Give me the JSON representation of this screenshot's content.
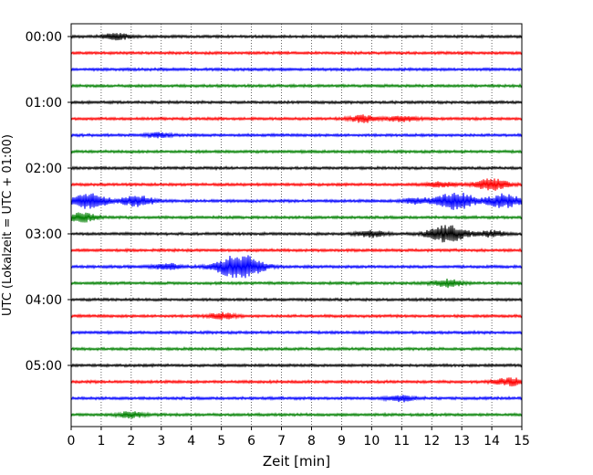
{
  "chart_data": {
    "type": "line",
    "title": "",
    "xlabel": "Zeit  [min]",
    "ylabel": "UTC (Lokalzeit = UTC + 01:00)",
    "xlim": [
      0,
      15
    ],
    "x_ticks": [
      0,
      1,
      2,
      3,
      4,
      5,
      6,
      7,
      8,
      9,
      10,
      11,
      12,
      13,
      14,
      15
    ],
    "y_ticks": [
      "00:00",
      "01:00",
      "02:00",
      "03:00",
      "04:00",
      "05:00"
    ],
    "grid": "vertical dotted",
    "trace_count": 24,
    "trace_interval_min": 15,
    "colors": [
      "#000000",
      "#ff0000",
      "#0000ff",
      "#008000"
    ],
    "events": [
      {
        "trace": 0,
        "x": 1.5,
        "amp": 3
      },
      {
        "trace": 6,
        "x": 2.9,
        "amp": 2
      },
      {
        "trace": 5,
        "x": 9.7,
        "amp": 3.5
      },
      {
        "trace": 5,
        "x": 11.0,
        "amp": 3
      },
      {
        "trace": 9,
        "x": 14.0,
        "amp": 6
      },
      {
        "trace": 9,
        "x": 12.3,
        "amp": 2.5
      },
      {
        "trace": 10,
        "x": 0.6,
        "amp": 8
      },
      {
        "trace": 10,
        "x": 2.2,
        "amp": 6
      },
      {
        "trace": 10,
        "x": 11.5,
        "amp": 3
      },
      {
        "trace": 10,
        "x": 12.8,
        "amp": 9
      },
      {
        "trace": 10,
        "x": 14.4,
        "amp": 7
      },
      {
        "trace": 11,
        "x": 0.3,
        "amp": 5
      },
      {
        "trace": 12,
        "x": 12.5,
        "amp": 9
      },
      {
        "trace": 12,
        "x": 10.0,
        "amp": 3
      },
      {
        "trace": 12,
        "x": 14.0,
        "amp": 3
      },
      {
        "trace": 14,
        "x": 3.2,
        "amp": 3
      },
      {
        "trace": 14,
        "x": 5.6,
        "amp": 13
      },
      {
        "trace": 15,
        "x": 12.5,
        "amp": 4
      },
      {
        "trace": 17,
        "x": 5.0,
        "amp": 3
      },
      {
        "trace": 21,
        "x": 14.6,
        "amp": 4
      },
      {
        "trace": 22,
        "x": 11.0,
        "amp": 3
      },
      {
        "trace": 23,
        "x": 2.0,
        "amp": 3
      }
    ]
  }
}
